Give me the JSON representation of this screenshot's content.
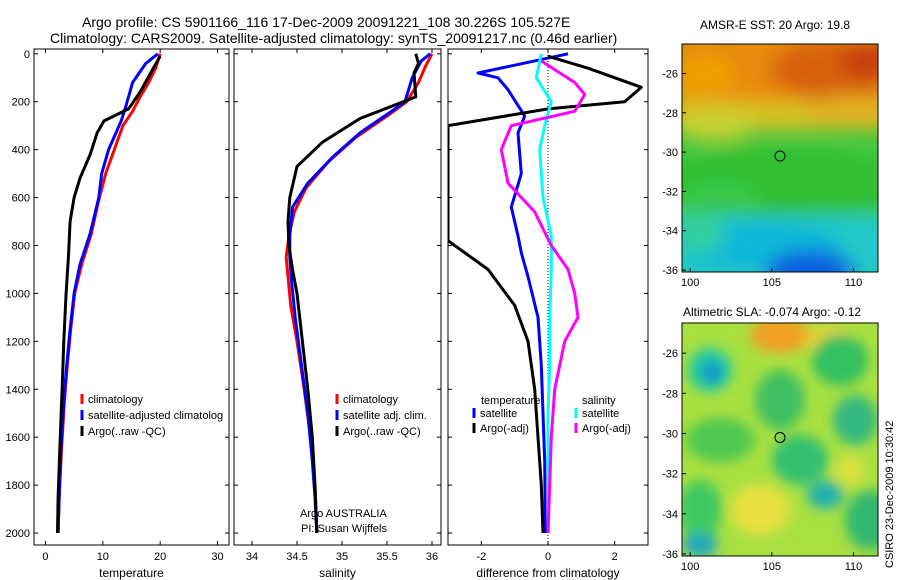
{
  "header": {
    "line1": "Argo profile: CS 5901166_116 17-Dec-2009 20091221_108 30.226S 105.527E",
    "line2": "Climatology: CARS2009. Satellite-adjusted climatology: synTS_20091217.nc (0.46d earlier)"
  },
  "colors": {
    "climatology": "#ff0000",
    "satellite": "#0000ff",
    "argo": "#000000",
    "satellite_sal": "#00ffff",
    "argo_sal": "#ff00ff"
  },
  "chart_data": [
    {
      "type": "line",
      "id": "temperature",
      "xlabel": "temperature",
      "ylabel": "",
      "xlim": [
        -2,
        32
      ],
      "ylim": [
        2050,
        -20
      ],
      "xticks": [
        "0",
        "10",
        "20",
        "30"
      ],
      "xtick_values": [
        0,
        10,
        20,
        30
      ],
      "yticks": [
        "0",
        "200",
        "400",
        "600",
        "800",
        "1000",
        "1200",
        "1400",
        "1600",
        "1800",
        "2000"
      ],
      "ytick_values": [
        0,
        200,
        400,
        600,
        800,
        1000,
        1200,
        1400,
        1600,
        1800,
        2000
      ],
      "legend": [
        "climatology",
        "satellite-adjusted climatolog",
        "Argo(..raw -QC)"
      ],
      "series": [
        {
          "name": "climatology",
          "color": "#ff0000",
          "points": [
            [
              20,
              0
            ],
            [
              19.2,
              60
            ],
            [
              18,
              120
            ],
            [
              16.5,
              180
            ],
            [
              15.2,
              240
            ],
            [
              13.5,
              300
            ],
            [
              12,
              400
            ],
            [
              10.5,
              500
            ],
            [
              9.2,
              620
            ],
            [
              8,
              750
            ],
            [
              6.3,
              880
            ],
            [
              5.1,
              1000
            ],
            [
              4.4,
              1150
            ],
            [
              3.8,
              1300
            ],
            [
              3.3,
              1450
            ],
            [
              2.8,
              1650
            ],
            [
              2.4,
              1850
            ],
            [
              2.2,
              2000
            ]
          ]
        },
        {
          "name": "satellite",
          "color": "#0000ff",
          "points": [
            [
              19.6,
              0
            ],
            [
              17.5,
              40
            ],
            [
              15.2,
              120
            ],
            [
              14,
              220
            ],
            [
              13.2,
              280
            ],
            [
              11,
              400
            ],
            [
              9.8,
              500
            ],
            [
              9.3,
              600
            ],
            [
              7.8,
              750
            ],
            [
              6,
              880
            ],
            [
              5,
              1000
            ],
            [
              4.3,
              1150
            ],
            [
              3.7,
              1300
            ],
            [
              3.2,
              1450
            ],
            [
              2.7,
              1650
            ],
            [
              2.4,
              1850
            ],
            [
              2.2,
              2000
            ]
          ]
        },
        {
          "name": "Argo",
          "color": "#000000",
          "points": [
            [
              20,
              10
            ],
            [
              18.8,
              60
            ],
            [
              16.5,
              160
            ],
            [
              14.5,
              230
            ],
            [
              10.2,
              280
            ],
            [
              9,
              330
            ],
            [
              7.8,
              420
            ],
            [
              6,
              520
            ],
            [
              5,
              600
            ],
            [
              4.3,
              700
            ],
            [
              4,
              850
            ],
            [
              3.6,
              1000
            ],
            [
              3.2,
              1200
            ],
            [
              2.9,
              1400
            ],
            [
              2.5,
              1650
            ],
            [
              2.2,
              1850
            ],
            [
              2.1,
              2000
            ]
          ]
        }
      ]
    },
    {
      "type": "line",
      "id": "salinity",
      "xlabel": "salinity",
      "xlim": [
        33.8,
        36.1
      ],
      "ylim": [
        2050,
        -20
      ],
      "xticks": [
        "34",
        "34.5",
        "35",
        "35.5",
        "36"
      ],
      "xtick_values": [
        34,
        34.5,
        35,
        35.5,
        36
      ],
      "legend": [
        "climatology",
        "satellite adj. clim.",
        "Argo(..raw -QC)"
      ],
      "annotations": [
        "Argo AUSTRALIA",
        "PI: Susan Wijffels"
      ],
      "series": [
        {
          "name": "climatology",
          "color": "#ff0000",
          "points": [
            [
              36,
              0
            ],
            [
              35.93,
              50
            ],
            [
              35.85,
              120
            ],
            [
              35.72,
              200
            ],
            [
              35.5,
              260
            ],
            [
              35.15,
              350
            ],
            [
              34.85,
              450
            ],
            [
              34.6,
              560
            ],
            [
              34.47,
              660
            ],
            [
              34.41,
              760
            ],
            [
              34.38,
              850
            ],
            [
              34.4,
              930
            ],
            [
              34.43,
              1050
            ],
            [
              34.5,
              1200
            ],
            [
              34.58,
              1400
            ],
            [
              34.65,
              1600
            ],
            [
              34.7,
              1800
            ],
            [
              34.72,
              2000
            ]
          ]
        },
        {
          "name": "satellite",
          "color": "#0000ff",
          "points": [
            [
              35.98,
              0
            ],
            [
              35.88,
              30
            ],
            [
              35.78,
              100
            ],
            [
              35.7,
              200
            ],
            [
              35.55,
              240
            ],
            [
              35.2,
              330
            ],
            [
              34.9,
              430
            ],
            [
              34.62,
              540
            ],
            [
              34.45,
              640
            ],
            [
              34.42,
              760
            ],
            [
              34.42,
              850
            ],
            [
              34.44,
              950
            ],
            [
              34.48,
              1100
            ],
            [
              34.55,
              1300
            ],
            [
              34.62,
              1500
            ],
            [
              34.67,
              1700
            ],
            [
              34.7,
              1850
            ],
            [
              34.72,
              2000
            ]
          ]
        },
        {
          "name": "Argo",
          "color": "#000000",
          "points": [
            [
              35.82,
              0
            ],
            [
              35.85,
              40
            ],
            [
              35.8,
              80
            ],
            [
              35.82,
              180
            ],
            [
              35.2,
              270
            ],
            [
              34.78,
              370
            ],
            [
              34.5,
              470
            ],
            [
              34.42,
              600
            ],
            [
              34.4,
              700
            ],
            [
              34.41,
              800
            ],
            [
              34.45,
              900
            ],
            [
              34.5,
              1000
            ],
            [
              34.56,
              1200
            ],
            [
              34.62,
              1400
            ],
            [
              34.67,
              1600
            ],
            [
              34.7,
              1800
            ],
            [
              34.72,
              2000
            ]
          ]
        }
      ]
    },
    {
      "type": "line",
      "id": "difference",
      "xlabel": "difference from climatology",
      "xlim": [
        -3,
        3
      ],
      "ylim": [
        2050,
        -20
      ],
      "xticks": [
        "-2",
        "0",
        "2"
      ],
      "xtick_values": [
        -2,
        0,
        2
      ],
      "legend_left_title": "temperature",
      "legend_right_title": "salinity",
      "legend_left": [
        "satellite",
        "Argo(-adj)"
      ],
      "legend_right": [
        "satellite",
        "Argo(-adj)"
      ],
      "series": [
        {
          "name": "temperature satellite",
          "color": "#0000ff",
          "points": [
            [
              0.6,
              0
            ],
            [
              -2.1,
              80
            ],
            [
              -1.5,
              100
            ],
            [
              -1.2,
              150
            ],
            [
              -0.7,
              260
            ],
            [
              -0.9,
              330
            ],
            [
              -0.8,
              500
            ],
            [
              -1.1,
              640
            ],
            [
              -0.9,
              760
            ],
            [
              -0.8,
              830
            ],
            [
              -0.6,
              930
            ],
            [
              -0.3,
              1100
            ],
            [
              -0.2,
              1300
            ],
            [
              -0.15,
              1500
            ],
            [
              -0.1,
              1700
            ],
            [
              -0.08,
              2000
            ]
          ]
        },
        {
          "name": "temperature Argo",
          "color": "#000000",
          "points": [
            [
              0,
              10
            ],
            [
              1.2,
              60
            ],
            [
              2.8,
              140
            ],
            [
              2.3,
              200
            ],
            [
              0,
              230
            ],
            [
              -3,
              300
            ],
            [
              -3,
              780
            ],
            [
              -1.8,
              900
            ],
            [
              -1.0,
              1050
            ],
            [
              -0.6,
              1200
            ],
            [
              -0.4,
              1400
            ],
            [
              -0.3,
              1600
            ],
            [
              -0.2,
              1800
            ],
            [
              -0.15,
              2000
            ]
          ]
        },
        {
          "name": "salinity satellite",
          "color": "#00ffff",
          "points": [
            [
              -0.2,
              0
            ],
            [
              -0.35,
              100
            ],
            [
              0.1,
              200
            ],
            [
              -0.1,
              300
            ],
            [
              -0.25,
              400
            ],
            [
              -0.15,
              600
            ],
            [
              0.1,
              760
            ],
            [
              0.1,
              900
            ],
            [
              0.05,
              1100
            ],
            [
              0.05,
              1300
            ],
            [
              0,
              1500
            ],
            [
              0,
              1700
            ],
            [
              0.02,
              2000
            ]
          ]
        },
        {
          "name": "salinity Argo",
          "color": "#ff00ff",
          "points": [
            [
              -0.2,
              30
            ],
            [
              0.8,
              120
            ],
            [
              1.1,
              170
            ],
            [
              0.8,
              240
            ],
            [
              -1.1,
              300
            ],
            [
              -1.4,
              400
            ],
            [
              -1.2,
              540
            ],
            [
              -0.4,
              660
            ],
            [
              0.1,
              800
            ],
            [
              0.6,
              900
            ],
            [
              0.8,
              1000
            ],
            [
              0.9,
              1100
            ],
            [
              0.5,
              1200
            ],
            [
              0.2,
              1400
            ],
            [
              0.1,
              1600
            ],
            [
              0.05,
              1800
            ],
            [
              0,
              2000
            ]
          ]
        }
      ]
    },
    {
      "type": "heatmap",
      "id": "sst",
      "title": "AMSR-E SST: 20 Argo: 19.8",
      "xlim": [
        99.5,
        111.5
      ],
      "ylim": [
        -36.1,
        -24.5
      ],
      "xticks": [
        "100",
        "105",
        "110"
      ],
      "xtick_values": [
        100,
        105,
        110
      ],
      "yticks": [
        "-26",
        "-28",
        "-30",
        "-32",
        "-34",
        "-36"
      ],
      "ytick_values": [
        -26,
        -28,
        -30,
        -32,
        -34,
        -36
      ],
      "marker": [
        105.5,
        -30.2
      ]
    },
    {
      "type": "heatmap",
      "id": "sla",
      "title": "Altimetric SLA: -0.074 Argo: -0.12",
      "xlim": [
        99.5,
        111.5
      ],
      "ylim": [
        -36.1,
        -24.5
      ],
      "xticks": [
        "100",
        "105",
        "110"
      ],
      "xtick_values": [
        100,
        105,
        110
      ],
      "yticks": [
        "-26",
        "-28",
        "-30",
        "-32",
        "-34",
        "-36"
      ],
      "ytick_values": [
        -26,
        -28,
        -30,
        -32,
        -34,
        -36
      ],
      "marker": [
        105.5,
        -30.2
      ]
    }
  ],
  "footer": {
    "stamp": "CSIRO 23-Dec-2009 10:30:42"
  }
}
